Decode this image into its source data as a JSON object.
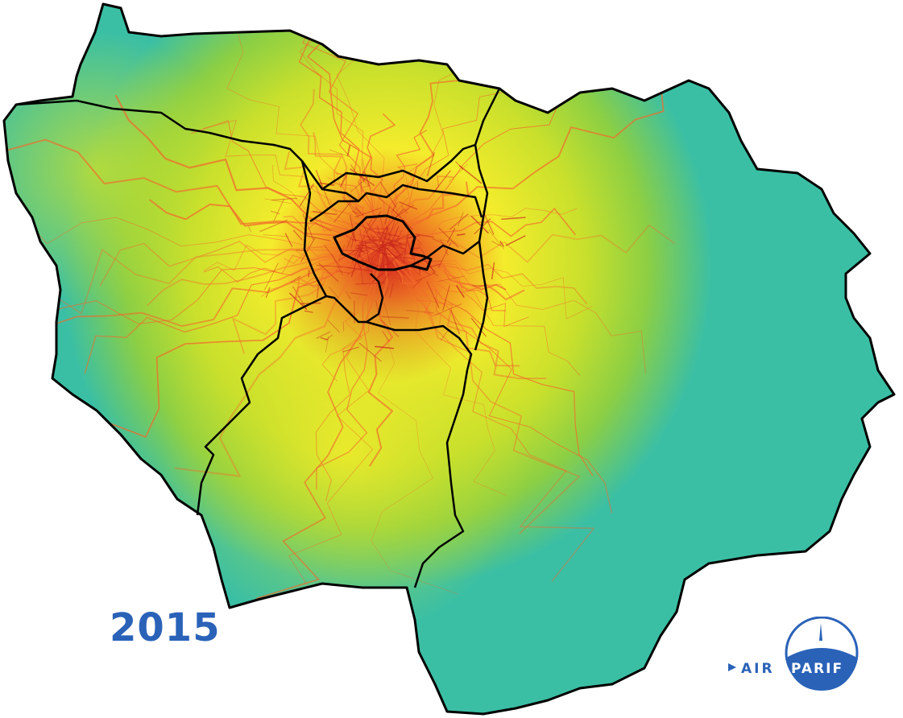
{
  "map": {
    "year": "2015",
    "colors": {
      "background": "#3bbfa4",
      "low": "#3bbfa4",
      "mid_low": "#9fd23a",
      "mid": "#f4ec2c",
      "high": "#f39c23",
      "peak": "#d7301f",
      "roads": "#f26b2b",
      "borders": "#000000",
      "year_text": "#2a62b8"
    }
  },
  "logo": {
    "text_left": "AIR",
    "text_right": "PARIF",
    "primary_color": "#2a62b8"
  }
}
